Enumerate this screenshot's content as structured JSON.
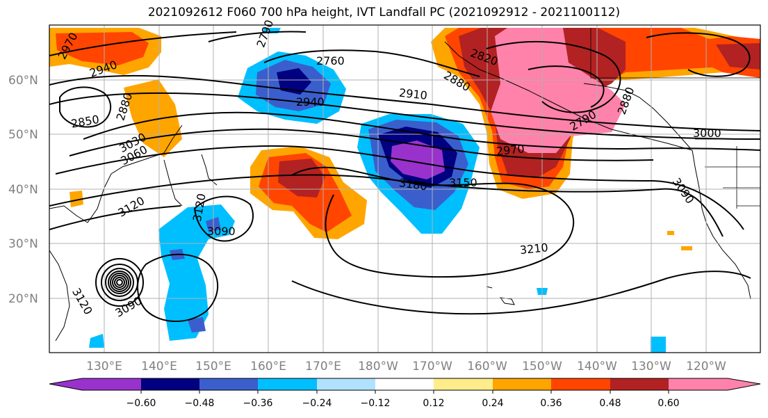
{
  "title": "2021092612 F060 700 hPa height, IVT Landfall PC (2021092912 - 2021100112)",
  "lat_labels": [
    "60°N",
    "50°N",
    "40°N",
    "30°N",
    "20°N"
  ],
  "lon_labels": [
    "130°E",
    "140°E",
    "150°E",
    "160°E",
    "170°E",
    "180°W",
    "170°W",
    "160°W",
    "150°W",
    "140°W",
    "130°W",
    "120°W"
  ],
  "contour_labels": [
    "2970",
    "2940",
    "2760",
    "2790",
    "2820",
    "2910",
    "2880",
    "2940",
    "2850",
    "2880",
    "3030",
    "3060",
    "2790",
    "2880",
    "3000",
    "2970",
    "3120",
    "3120",
    "3180",
    "3150",
    "3090",
    "3090",
    "3210",
    "3120",
    "3090"
  ],
  "colorbar": {
    "ticks": [
      "−0.60",
      "−0.48",
      "−0.36",
      "−0.24",
      "−0.12",
      "0.12",
      "0.24",
      "0.36",
      "0.48",
      "0.60"
    ],
    "colors": [
      "#9932cc",
      "#000080",
      "#3a5fcd",
      "#00bfff",
      "#b0e2ff",
      "#ffffff",
      "#ffec8b",
      "#ffa500",
      "#ff4500",
      "#b22222",
      "#ff82ab"
    ]
  }
}
